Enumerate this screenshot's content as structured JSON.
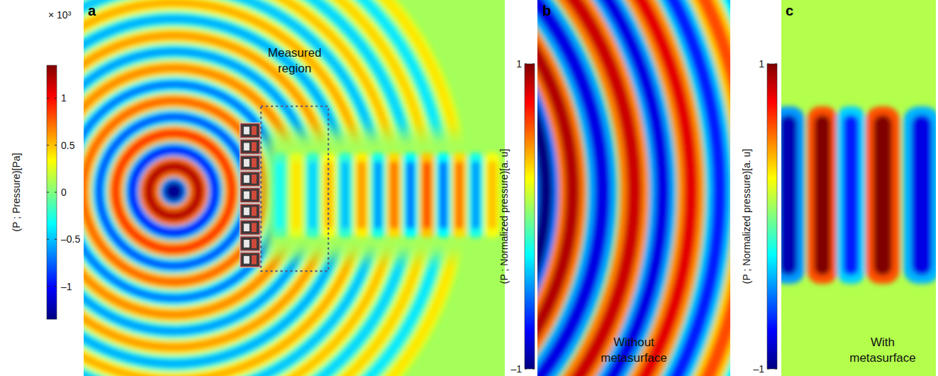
{
  "chart_data": [
    {
      "type": "field",
      "panel": "a",
      "color": "jet",
      "colorbar": {
        "title": "(P ; Pressure)[Pa]",
        "multiplier": "× 10³",
        "lim": [
          -1.35,
          1.35
        ],
        "ticks": [
          1,
          0.5,
          0,
          {
            "value": -0.5,
            "label": "–0.5"
          },
          {
            "value": -1,
            "label": "–1"
          }
        ]
      },
      "xlim": [
        0,
        100
      ],
      "ylim": [
        0,
        89.2
      ],
      "background": 0.1,
      "rings": {
        "x": 21.4,
        "y": 43.8,
        "radii": [
          0,
          5.9,
          9.8,
          13.8,
          17.7,
          21.5,
          25.4,
          29.3,
          33.2,
          37.0,
          40.9,
          44.8,
          48.7,
          52.5,
          56.4,
          60.3,
          64.1,
          68.0
        ],
        "values": [
          -1.3,
          1.2,
          -1.0,
          0.9,
          -0.8,
          0.75,
          -0.7,
          0.65,
          -0.6,
          0.6,
          -0.55,
          0.55,
          -0.5,
          0.5,
          -0.45,
          0.45,
          -0.4,
          0.4
        ]
      },
      "fronts": {
        "x": [
          46.6,
          50.5,
          54.4,
          58.2,
          62.1,
          66.0,
          69.9,
          73.7,
          77.6,
          81.5,
          85.4,
          89.2,
          93.1,
          97.0
        ],
        "values": [
          -0.3,
          0.4,
          -0.45,
          0.5,
          -0.5,
          0.6,
          -0.6,
          0.7,
          -0.7,
          0.8,
          -0.7,
          0.7,
          -0.6,
          0.5
        ],
        "y_extent": [
          32.8,
          53.0
        ]
      },
      "annotation": {
        "text": "Measured region",
        "box_x": [
          42.1,
          58.1
        ],
        "box_y": [
          24.9,
          64.0
        ]
      }
    },
    {
      "type": "field",
      "panel": "b",
      "color": "jet",
      "caption": "Without metasurface",
      "colorbar": {
        "title": "(P ; Normalized pressure)[a. u]",
        "lim": [
          -1,
          1
        ],
        "ticks": [
          1,
          {
            "value": -1,
            "label": "–1"
          }
        ]
      },
      "xlim": [
        0,
        100
      ],
      "ylim": [
        0,
        194.9
      ],
      "background": 0.05,
      "rings": {
        "x": -124.3,
        "y": 95.6,
        "radii": [
          128.7,
          142.6,
          158.1,
          174.6,
          189.3,
          204.0,
          218.8,
          233.5,
          248.2
        ],
        "values": [
          -1,
          0.9,
          -0.8,
          0.85,
          -0.8,
          0.8,
          -0.7,
          0.6,
          -0.5
        ]
      }
    },
    {
      "type": "field",
      "panel": "c",
      "color": "jet",
      "caption": "With metasurface",
      "colorbar": {
        "title": "(P ; Normalized pressure)[a. u]",
        "lim": [
          -1,
          1
        ],
        "ticks": [
          1,
          {
            "value": -1,
            "label": "–1"
          }
        ]
      },
      "xlim": [
        0,
        100
      ],
      "ylim": [
        0,
        243.1
      ],
      "background": 0.1,
      "fronts": {
        "x": [
          4.6,
          26.6,
          45.0,
          65.6,
          90.8
        ],
        "values": [
          -0.9,
          1.0,
          -0.7,
          1.0,
          -0.8
        ],
        "y_extent": [
          59.6,
          174.3
        ]
      }
    }
  ]
}
